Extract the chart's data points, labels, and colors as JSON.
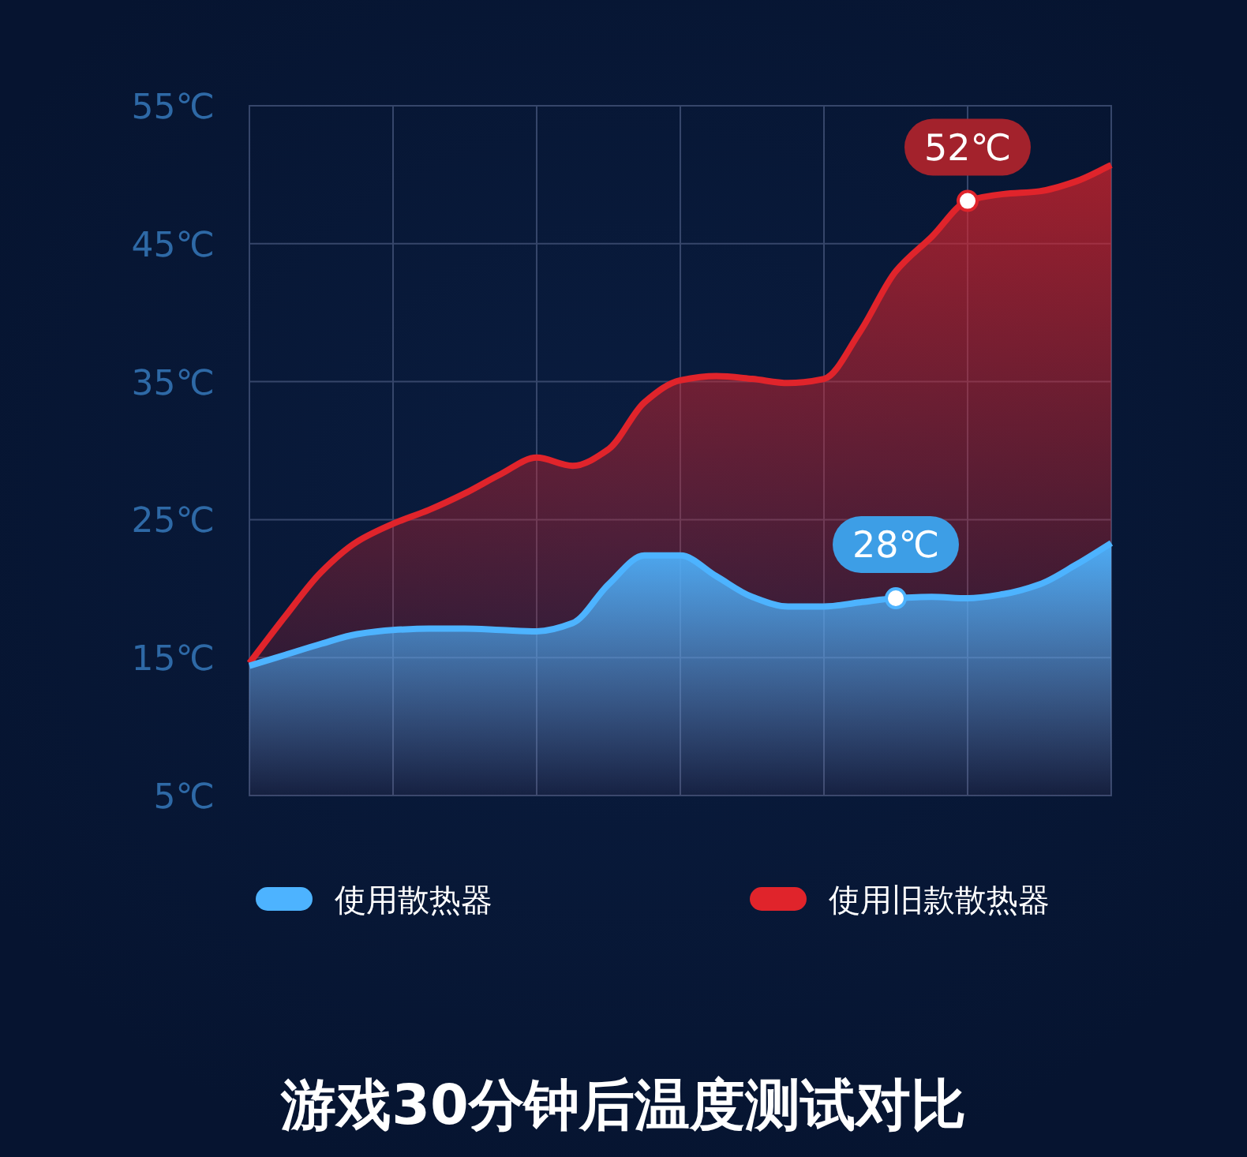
{
  "chart_data": {
    "type": "area",
    "title": "游戏30分钟后温度测试对比",
    "categories": [
      null,
      null,
      null,
      null,
      null,
      null,
      null,
      null,
      null,
      null,
      null,
      null,
      null,
      null,
      null,
      null,
      null,
      null,
      null,
      null,
      null,
      null,
      null,
      null,
      null
    ],
    "series": [
      {
        "name": "使用散热器",
        "color": "#4db3ff",
        "values": [
          14.4,
          15.2,
          16.0,
          16.7,
          17.0,
          17.1,
          17.1,
          17.0,
          16.9,
          17.5,
          20.3,
          22.4,
          22.4,
          20.9,
          19.4,
          18.7,
          18.7,
          19.0,
          19.3,
          19.4,
          19.3,
          19.6,
          20.3,
          21.7,
          23.3
        ]
      },
      {
        "name": "使用旧款散热器",
        "color": "#e0242b",
        "values": [
          14.6,
          18.0,
          21.2,
          23.4,
          24.7,
          25.7,
          26.9,
          28.3,
          29.5,
          28.9,
          30.1,
          33.5,
          35.1,
          35.4,
          35.2,
          34.9,
          35.2,
          38.6,
          43.0,
          45.5,
          48.1,
          48.6,
          48.8,
          49.5,
          50.7
        ]
      }
    ],
    "ylim": [
      5,
      55
    ],
    "yticks": [
      {
        "value": 5,
        "label": "5℃"
      },
      {
        "value": 15,
        "label": "15℃"
      },
      {
        "value": 25,
        "label": "25℃"
      },
      {
        "value": 35,
        "label": "35℃"
      },
      {
        "value": 45,
        "label": "45℃"
      },
      {
        "value": 55,
        "label": "55℃"
      }
    ],
    "annotations": [
      {
        "text": "52℃",
        "y": 48.1
      },
      {
        "text": "28℃",
        "y": 19.3
      }
    ],
    "grid": true,
    "legend": "bottom"
  }
}
